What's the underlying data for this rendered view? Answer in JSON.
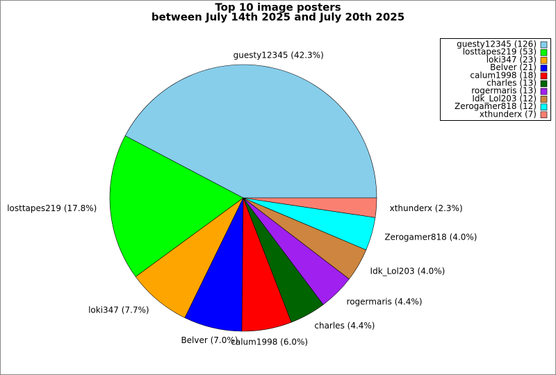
{
  "chart_data": {
    "type": "pie",
    "title": "Top 10 image posters",
    "subtitle": "between July 14th 2025 and July 20th 2025",
    "categories": [
      "guesty12345",
      "losttapes219",
      "loki347",
      "Belver",
      "calum1998",
      "charles",
      "rogermaris",
      "Idk_Lol203",
      "Zerogamer818",
      "xthunderx"
    ],
    "values": [
      126,
      53,
      23,
      21,
      18,
      13,
      13,
      12,
      12,
      7
    ],
    "slice_labels": [
      "guesty12345 (42.3%)",
      "losttapes219 (17.8%)",
      "loki347 (7.7%)",
      "Belver (7.0%)",
      "calum1998 (6.0%)",
      "charles (4.4%)",
      "rogermaris (4.4%)",
      "Idk_Lol203 (4.0%)",
      "Zerogamer818 (4.0%)",
      "xthunderx (2.3%)"
    ],
    "legend_labels": [
      "guesty12345 (126)",
      "losttapes219 (53)",
      "loki347 (23)",
      "Belver (21)",
      "calum1998 (18)",
      "charles (13)",
      "rogermaris (13)",
      "Idk_Lol203 (12)",
      "Zerogamer818 (12)",
      "xthunderx (7)"
    ],
    "colors": [
      "#87ceeb",
      "#00ff00",
      "#ffa500",
      "#0000ff",
      "#ff0000",
      "#006400",
      "#a020f0",
      "#cd853f",
      "#00ffff",
      "#fa8072"
    ],
    "legend": "upper right"
  }
}
